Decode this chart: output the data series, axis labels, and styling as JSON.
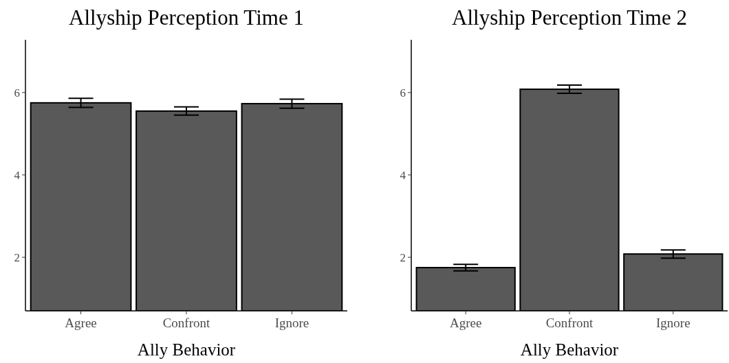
{
  "chart_data": [
    {
      "type": "bar",
      "title": "Allyship Perception Time 1",
      "xlabel": "Ally Behavior",
      "categories": [
        "Agree",
        "Confront",
        "Ignore"
      ],
      "values": [
        5.75,
        5.55,
        5.73
      ],
      "errors": [
        0.11,
        0.1,
        0.11
      ],
      "color": "#595959",
      "ylim": [
        0.7,
        7.28
      ],
      "yticks": [
        2,
        4,
        6
      ],
      "grid": false
    },
    {
      "type": "bar",
      "title": "Allyship Perception Time 2",
      "xlabel": "Ally Behavior",
      "categories": [
        "Agree",
        "Confront",
        "Ignore"
      ],
      "values": [
        1.75,
        6.08,
        2.08
      ],
      "errors": [
        0.08,
        0.1,
        0.1
      ],
      "color": "#595959",
      "ylim": [
        0.7,
        7.28
      ],
      "yticks": [
        2,
        4,
        6
      ],
      "grid": false
    }
  ]
}
